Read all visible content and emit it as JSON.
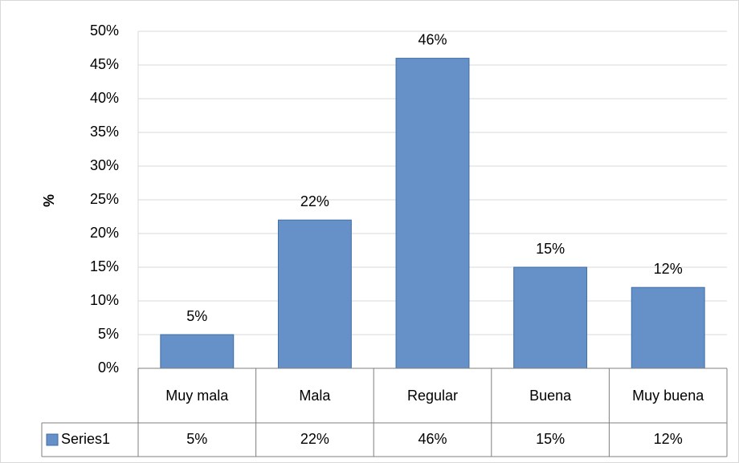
{
  "chart_data": {
    "type": "bar",
    "y_label": "%",
    "categories": [
      "Muy mala",
      "Mala",
      "Regular",
      "Buena",
      "Muy buena"
    ],
    "series": [
      {
        "name": "Series1",
        "color": "#6690c8",
        "values": [
          5,
          22,
          46,
          15,
          12
        ],
        "value_labels": [
          "5%",
          "22%",
          "46%",
          "15%",
          "12%"
        ]
      }
    ],
    "ylim": [
      0,
      50
    ],
    "yticks": [
      {
        "value": 0,
        "label": "0%"
      },
      {
        "value": 5,
        "label": "5%"
      },
      {
        "value": 10,
        "label": "10%"
      },
      {
        "value": 15,
        "label": "15%"
      },
      {
        "value": 20,
        "label": "20%"
      },
      {
        "value": 25,
        "label": "25%"
      },
      {
        "value": 30,
        "label": "30%"
      },
      {
        "value": 35,
        "label": "35%"
      },
      {
        "value": 40,
        "label": "40%"
      },
      {
        "value": 45,
        "label": "45%"
      },
      {
        "value": 50,
        "label": "50%"
      }
    ],
    "grid": true
  }
}
